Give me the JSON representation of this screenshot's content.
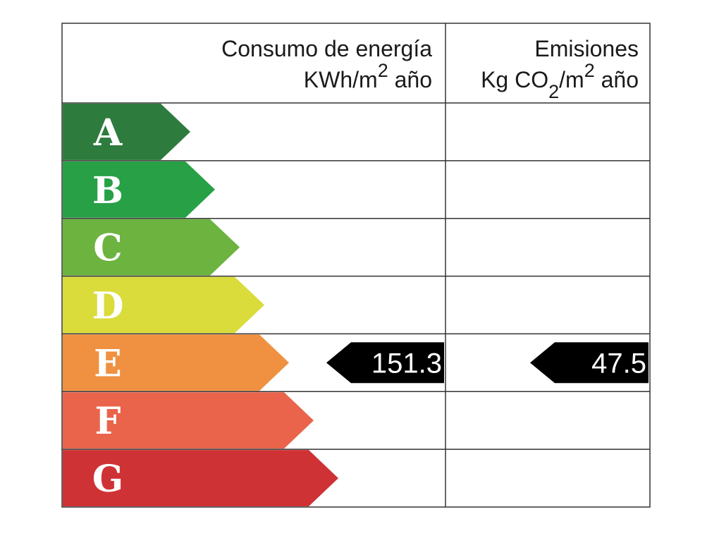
{
  "header": {
    "consumo": {
      "line1": "Consumo de energía",
      "line2": [
        "KWh/m",
        "2",
        " año"
      ]
    },
    "emisiones": {
      "line1": "Emisiones",
      "line2": [
        "Kg CO",
        "2",
        "/m",
        "2",
        " año"
      ]
    }
  },
  "rows": [
    {
      "grade": "A",
      "color": "#2e7b3e"
    },
    {
      "grade": "B",
      "color": "#27a046"
    },
    {
      "grade": "C",
      "color": "#6cb33f"
    },
    {
      "grade": "D",
      "color": "#d9dc3a"
    },
    {
      "grade": "E",
      "color": "#ef9140",
      "consumo": 151.3,
      "emisiones": 47.5
    },
    {
      "grade": "F",
      "color": "#e9644b"
    },
    {
      "grade": "G",
      "color": "#cf3235"
    }
  ]
}
